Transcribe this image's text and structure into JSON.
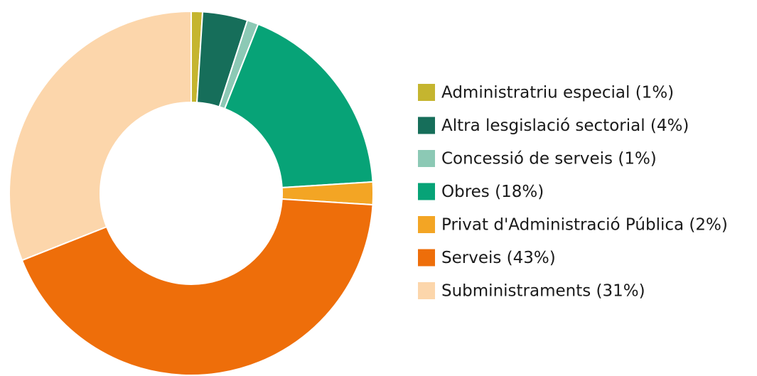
{
  "chart_data": {
    "type": "donut",
    "categories": [
      "Administratriu especial (1%)",
      "Altra lesgislació sectorial (4%)",
      "Concessió de serveis (1%)",
      "Obres (18%)",
      "Privat d'Administració Pública (2%)",
      "Serveis (43%)",
      "Subministraments (31%)"
    ],
    "values": [
      1,
      4,
      1,
      18,
      2,
      43,
      31
    ],
    "colors": [
      "#c5b52f",
      "#166e5a",
      "#8cc9b5",
      "#07a377",
      "#f3a524",
      "#ee6e0a",
      "#fcd6ab"
    ],
    "legend": "right"
  }
}
